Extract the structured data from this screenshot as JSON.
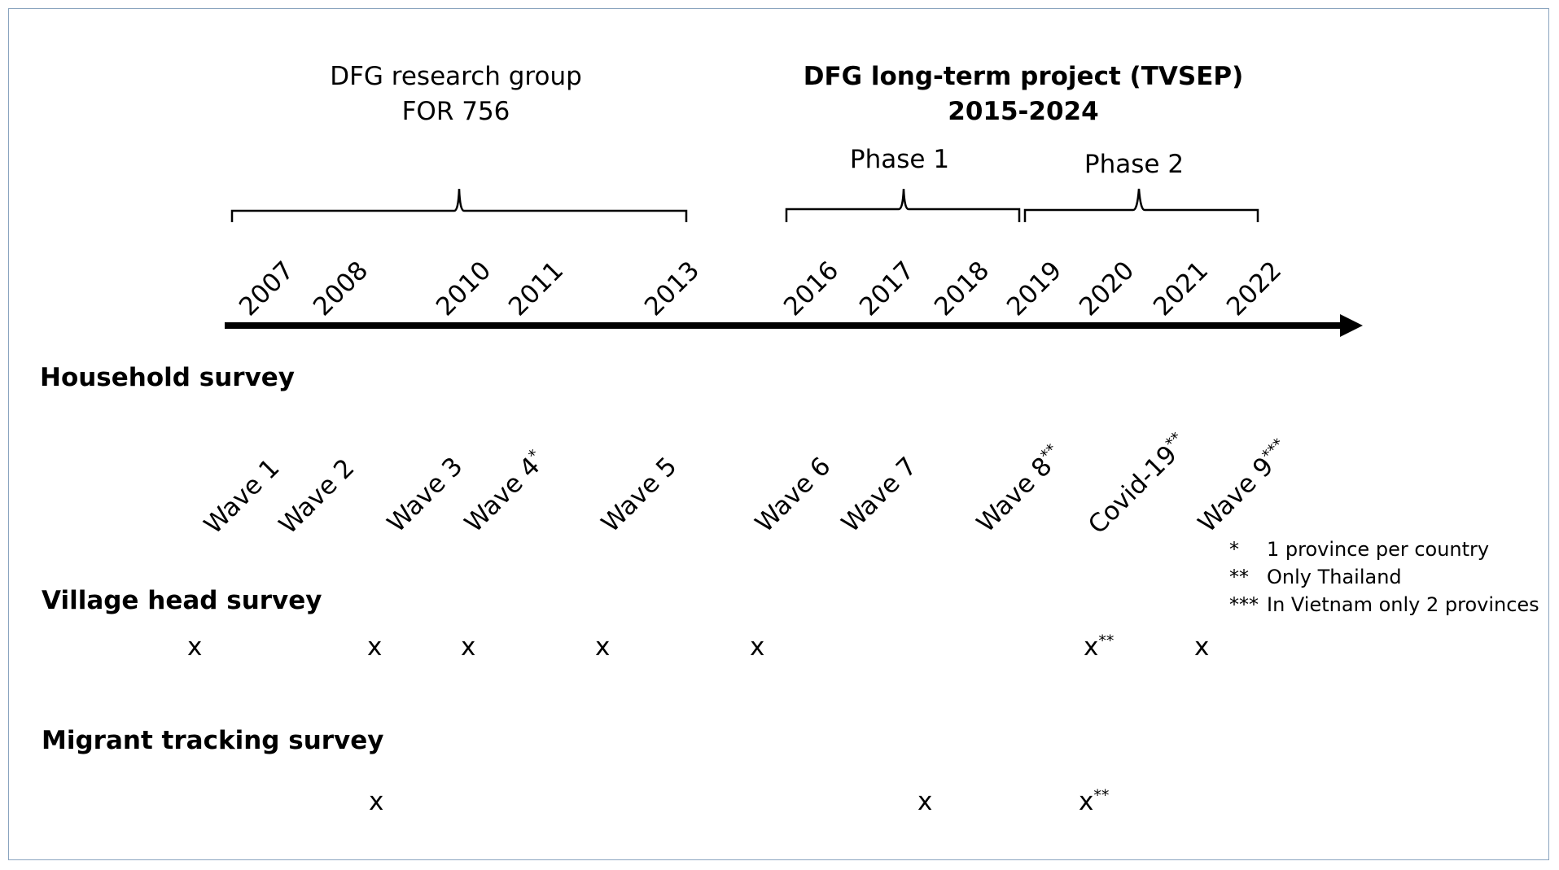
{
  "projects": {
    "left": {
      "line1": "DFG research group",
      "line2": "FOR 756"
    },
    "right": {
      "line1": "DFG long-term project (TVSEP)",
      "line2": "2015-2024"
    },
    "phase1": "Phase 1",
    "phase2": "Phase 2"
  },
  "years": [
    "2007",
    "2008",
    "2010",
    "2011",
    "2013",
    "2016",
    "2017",
    "2018",
    "2019",
    "2020",
    "2021",
    "2022"
  ],
  "sections": {
    "household": "Household survey",
    "village": "Village head survey",
    "migrant": "Migrant tracking survey"
  },
  "waves": [
    {
      "label": "Wave 1",
      "sup": ""
    },
    {
      "label": "Wave 2",
      "sup": ""
    },
    {
      "label": "Wave 3",
      "sup": ""
    },
    {
      "label": "Wave 4",
      "sup": "*"
    },
    {
      "label": "Wave 5",
      "sup": ""
    },
    {
      "label": "Wave 6",
      "sup": ""
    },
    {
      "label": "Wave 7",
      "sup": ""
    },
    {
      "label": "Wave 8",
      "sup": "**"
    },
    {
      "label": "Covid-19",
      "sup": "**"
    },
    {
      "label": "Wave 9",
      "sup": "***"
    }
  ],
  "village_marks": [
    {
      "mark": "x",
      "sup": ""
    },
    {
      "mark": "x",
      "sup": ""
    },
    {
      "mark": "x",
      "sup": ""
    },
    {
      "mark": "x",
      "sup": ""
    },
    {
      "mark": "x",
      "sup": ""
    },
    {
      "mark": "x",
      "sup": "**"
    },
    {
      "mark": "x",
      "sup": ""
    }
  ],
  "migrant_marks": [
    {
      "mark": "x",
      "sup": ""
    },
    {
      "mark": "x",
      "sup": ""
    },
    {
      "mark": "x",
      "sup": "**"
    }
  ],
  "notes": [
    {
      "sym": "*",
      "text": "1 province per country"
    },
    {
      "sym": "**",
      "text": "Only Thailand"
    },
    {
      "sym": "***",
      "text": "In Vietnam only 2 provinces"
    }
  ]
}
